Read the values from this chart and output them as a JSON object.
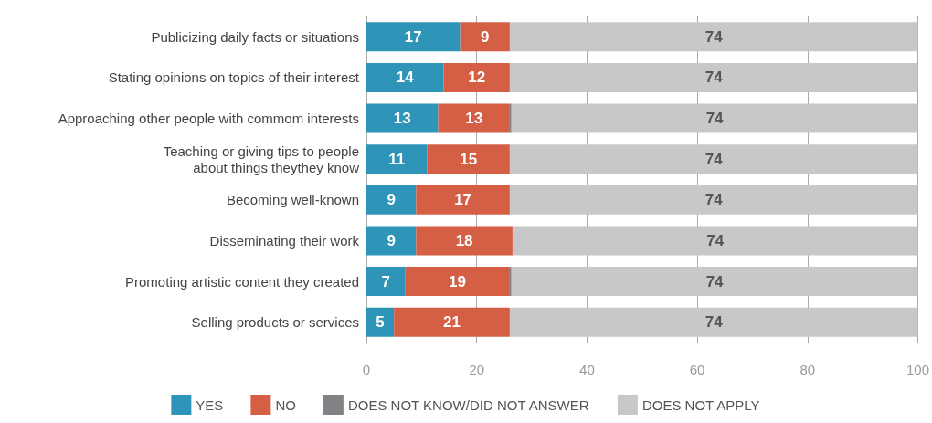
{
  "chart_data": {
    "type": "bar",
    "orientation": "horizontal",
    "stacked": true,
    "categories": [
      "Publicizing daily facts or situations",
      "Stating opinions on topics of their interest",
      "Approaching other people with commom interests",
      "Teaching or giving tips to people about things theythey know",
      "Becoming well-known",
      "Disseminating their work",
      "Promoting artistic content they created",
      "Selling products or services"
    ],
    "series": [
      {
        "name": "YES",
        "color": "#2e95b8",
        "values": [
          17,
          14,
          13,
          11,
          9,
          9,
          7,
          5
        ],
        "value_labels": [
          "17",
          "14",
          "13",
          "11",
          "9",
          "9",
          "7",
          "5"
        ]
      },
      {
        "name": "NO",
        "color": "#d45f45",
        "values": [
          9,
          12,
          13,
          15,
          17,
          17.5,
          19,
          21
        ],
        "value_labels": [
          "9",
          "12",
          "13",
          "15",
          "17",
          "18",
          "19",
          "21"
        ]
      },
      {
        "name": "DOES NOT KNOW/DID NOT ANSWER",
        "color": "#808285",
        "values": [
          0,
          0,
          0.3,
          0,
          0,
          0,
          0.3,
          0
        ],
        "value_labels": [
          null,
          null,
          null,
          null,
          null,
          null,
          null,
          null
        ]
      },
      {
        "name": "DOES NOT APPLY",
        "color": "#c8c8ca",
        "values": [
          74,
          74,
          73.7,
          74,
          74,
          73.5,
          73.7,
          74
        ],
        "value_labels": [
          "74",
          "74",
          "74",
          "74",
          "74",
          "74",
          "74",
          "74"
        ]
      }
    ],
    "xlim": [
      0,
      100
    ],
    "xticks": [
      0,
      20,
      40,
      60,
      80,
      100
    ],
    "grid": "x",
    "legend": "bottom"
  }
}
